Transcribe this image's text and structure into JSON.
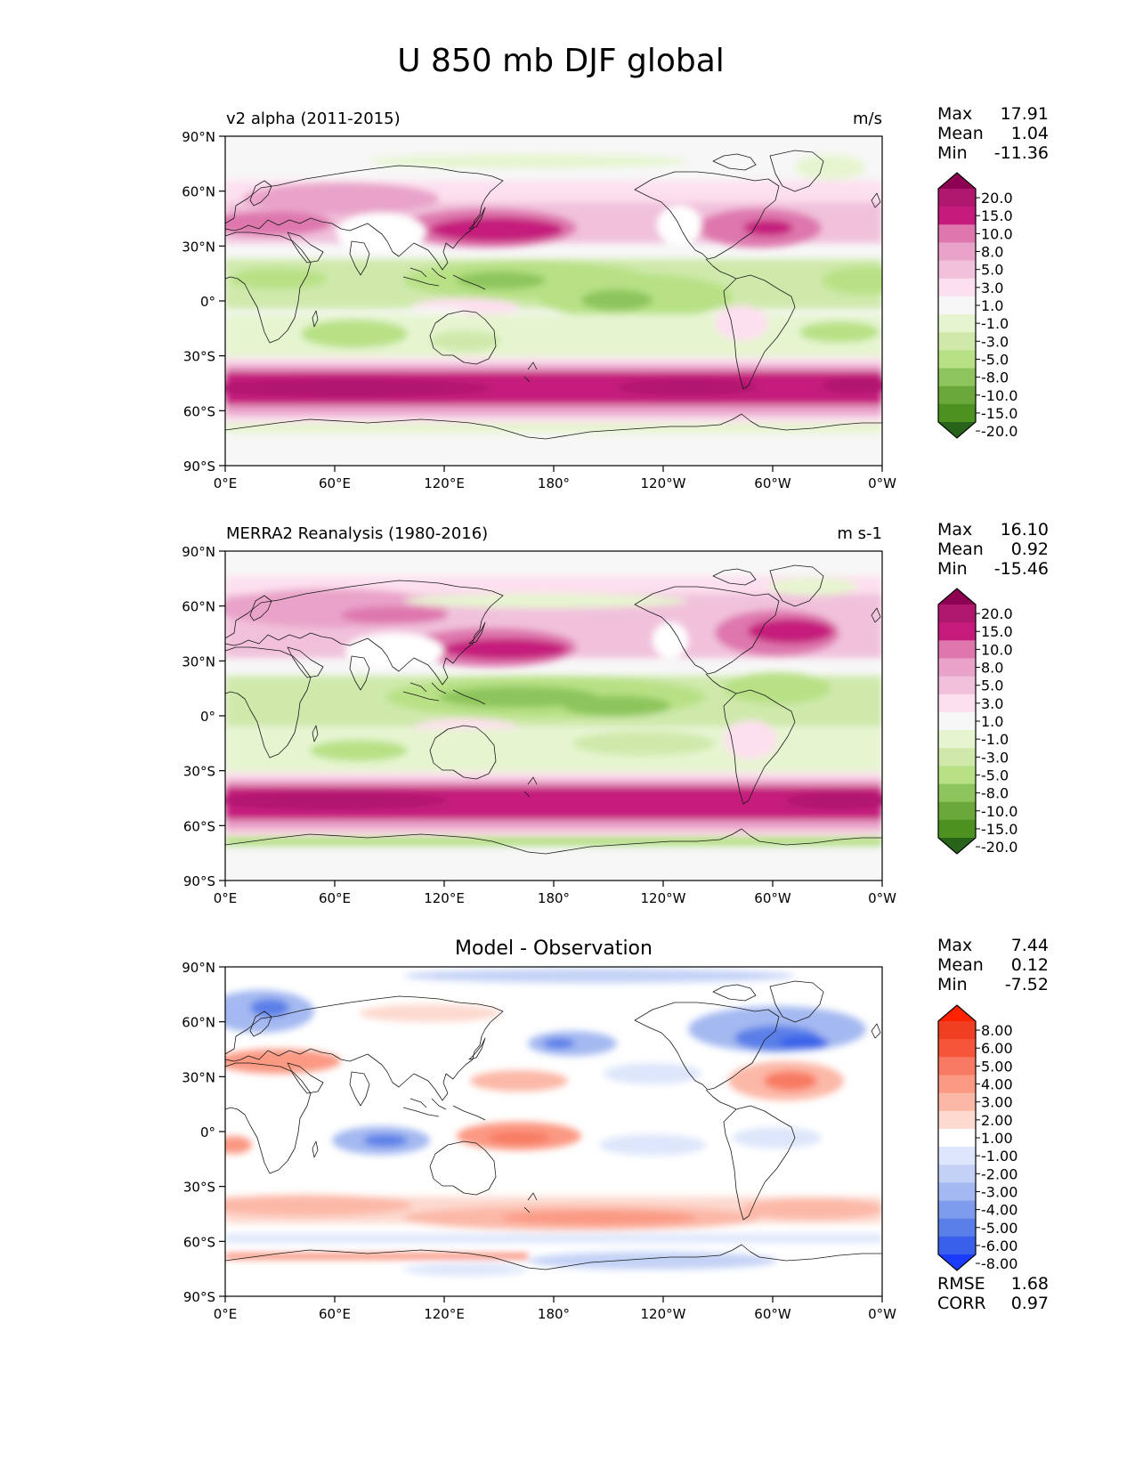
{
  "title": "U 850 mb DJF global",
  "panels": [
    {
      "name": "model",
      "left_title": "v2 alpha (2011-2015)",
      "right_title": "m/s",
      "center_title": "",
      "stats": [
        {
          "label": "Max",
          "value": "17.91"
        },
        {
          "label": "Mean",
          "value": "1.04"
        },
        {
          "label": "Min",
          "value": "-11.36"
        }
      ],
      "bottom_stats": [],
      "colorbar_key": "full"
    },
    {
      "name": "reference",
      "left_title": "MERRA2 Reanalysis (1980-2016)",
      "right_title": "m s-1",
      "center_title": "",
      "stats": [
        {
          "label": "Max",
          "value": "16.10"
        },
        {
          "label": "Mean",
          "value": "0.92"
        },
        {
          "label": "Min",
          "value": "-15.46"
        }
      ],
      "bottom_stats": [],
      "colorbar_key": "full"
    },
    {
      "name": "difference",
      "left_title": "",
      "right_title": "",
      "center_title": "Model - Observation",
      "stats": [
        {
          "label": "Max",
          "value": "7.44"
        },
        {
          "label": "Mean",
          "value": "0.12"
        },
        {
          "label": "Min",
          "value": "-7.52"
        }
      ],
      "bottom_stats": [
        {
          "label": "RMSE",
          "value": "1.68"
        },
        {
          "label": "CORR",
          "value": "0.97"
        }
      ],
      "colorbar_key": "diff"
    }
  ],
  "colorbars": {
    "full": {
      "levels": [
        "20.0",
        "15.0",
        "10.0",
        "8.0",
        "5.0",
        "3.0",
        "1.0",
        "-1.0",
        "-3.0",
        "-5.0",
        "-8.0",
        "-10.0",
        "-15.0",
        "-20.0"
      ],
      "colors": [
        "#8e0152",
        "#b0186f",
        "#c51b7d",
        "#de77ae",
        "#e9a3c9",
        "#f1c1dc",
        "#fde0ef",
        "#f7f7f7",
        "#e6f5d0",
        "#cfe9ab",
        "#b8e186",
        "#8dc55c",
        "#6aa83c",
        "#4d9221",
        "#276419"
      ]
    },
    "diff": {
      "levels": [
        "8.00",
        "6.00",
        "5.00",
        "4.00",
        "3.00",
        "2.00",
        "1.00",
        "-1.00",
        "-2.00",
        "-3.00",
        "-4.00",
        "-5.00",
        "-6.00",
        "-8.00"
      ],
      "colors": [
        "#ff2200",
        "#f03e22",
        "#f6553a",
        "#f87a62",
        "#fb9983",
        "#fcb8a7",
        "#fdd9cf",
        "#ffffff",
        "#dde6fb",
        "#c3d1f6",
        "#a4b9f1",
        "#7e9ced",
        "#5a7fe8",
        "#3960ea",
        "#1a3cff"
      ]
    }
  },
  "axes": {
    "lat_ticks": [
      "90°N",
      "60°N",
      "30°N",
      "0°",
      "30°S",
      "60°S",
      "90°S"
    ],
    "lon_ticks": [
      "0°E",
      "60°E",
      "120°E",
      "180°",
      "120°W",
      "60°W",
      "0°W"
    ]
  },
  "chart_data": [
    {
      "type": "heatmap",
      "title": "v2 alpha (2011-2015)",
      "units": "m/s",
      "variable": "U 850 mb DJF",
      "x": [
        "0°E",
        "60°E",
        "120°E",
        "180°",
        "120°W",
        "60°W",
        "0°W"
      ],
      "y": [
        "90°N",
        "60°N",
        "30°N",
        "0°",
        "30°S",
        "60°S",
        "90°S"
      ],
      "xlim": [
        0,
        360
      ],
      "ylim": [
        -90,
        90
      ],
      "features": [
        {
          "kind": "jet",
          "lon": 165,
          "lat": 37,
          "value": 15
        },
        {
          "kind": "jet",
          "lon": 295,
          "lat": 38,
          "value": 11
        },
        {
          "kind": "jet",
          "lon": 60,
          "lat": 50,
          "value": 8
        },
        {
          "kind": "jet",
          "lon": 20,
          "lat": 40,
          "value": 8
        },
        {
          "kind": "southern_jet",
          "lon": 180,
          "lat": -48,
          "value": 14
        },
        {
          "kind": "easterlies",
          "lon": 150,
          "lat": 10,
          "value": -10
        },
        {
          "kind": "easterlies",
          "lon": 220,
          "lat": 0,
          "value": -10
        },
        {
          "kind": "easterlies",
          "lon": 80,
          "lat": -18,
          "value": -6
        }
      ],
      "stats": {
        "max": 17.91,
        "mean": 1.04,
        "min": -11.36
      }
    },
    {
      "type": "heatmap",
      "title": "MERRA2 Reanalysis (1980-2016)",
      "units": "m s-1",
      "variable": "U 850 mb DJF",
      "x": [
        "0°E",
        "60°E",
        "120°E",
        "180°",
        "120°W",
        "60°W",
        "0°W"
      ],
      "y": [
        "90°N",
        "60°N",
        "30°N",
        "0°",
        "30°S",
        "60°S",
        "90°S"
      ],
      "xlim": [
        0,
        360
      ],
      "ylim": [
        -90,
        90
      ],
      "features": [
        {
          "kind": "jet",
          "lon": 165,
          "lat": 37,
          "value": 14
        },
        {
          "kind": "jet",
          "lon": 300,
          "lat": 42,
          "value": 13
        },
        {
          "kind": "jet",
          "lon": 60,
          "lat": 50,
          "value": 7
        },
        {
          "kind": "southern_jet",
          "lon": 180,
          "lat": -48,
          "value": 13
        },
        {
          "kind": "easterlies",
          "lon": 160,
          "lat": 8,
          "value": -10
        },
        {
          "kind": "easterlies",
          "lon": 220,
          "lat": 2,
          "value": -10
        },
        {
          "kind": "easterlies",
          "lon": 80,
          "lat": -15,
          "value": -6
        }
      ],
      "stats": {
        "max": 16.1,
        "mean": 0.92,
        "min": -15.46
      }
    },
    {
      "type": "heatmap",
      "title": "Model - Observation",
      "units": "m/s",
      "variable": "U 850 mb DJF difference",
      "x": [
        "0°E",
        "60°E",
        "120°E",
        "180°",
        "120°W",
        "60°W",
        "0°W"
      ],
      "y": [
        "90°N",
        "60°N",
        "30°N",
        "0°",
        "30°S",
        "60°S",
        "90°S"
      ],
      "xlim": [
        0,
        360
      ],
      "ylim": [
        -90,
        90
      ],
      "features": [
        {
          "kind": "negative",
          "lon": 300,
          "lat": 50,
          "value": -5
        },
        {
          "kind": "negative",
          "lon": 18,
          "lat": 62,
          "value": -4
        },
        {
          "kind": "negative",
          "lon": 180,
          "lat": 50,
          "value": -4
        },
        {
          "kind": "negative",
          "lon": 80,
          "lat": -5,
          "value": -4
        },
        {
          "kind": "positive",
          "lon": 305,
          "lat": 28,
          "value": 4
        },
        {
          "kind": "positive",
          "lon": 180,
          "lat": -5,
          "value": 3
        },
        {
          "kind": "positive",
          "lon": 190,
          "lat": -45,
          "value": 3
        },
        {
          "kind": "positive",
          "lon": 20,
          "lat": 40,
          "value": 3
        }
      ],
      "stats": {
        "max": 7.44,
        "mean": 0.12,
        "min": -7.52,
        "rmse": 1.68,
        "corr": 0.97
      }
    }
  ]
}
